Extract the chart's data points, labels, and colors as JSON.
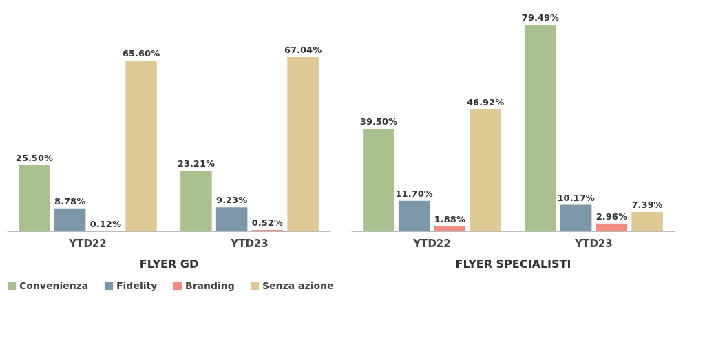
{
  "chart_data": [
    {
      "type": "bar",
      "xlabel": "FLYER GD",
      "categories": [
        "YTD22",
        "YTD23"
      ],
      "legend": "bottom",
      "series": [
        {
          "name": "Convenienza",
          "color": "#a9c08f",
          "values": [
            25.5,
            23.21
          ],
          "value_labels": [
            "25.50%",
            "23.21%"
          ]
        },
        {
          "name": "Fidelity",
          "color": "#7b97a8",
          "values": [
            8.78,
            9.23
          ],
          "value_labels": [
            "8.78%",
            "9.23%"
          ]
        },
        {
          "name": "Branding",
          "color": "#f28b82",
          "values": [
            0.12,
            0.52
          ],
          "value_labels": [
            "0.12%",
            "0.52%"
          ]
        },
        {
          "name": "Senza azione",
          "color": "#dfc995",
          "values": [
            65.6,
            67.04
          ],
          "value_labels": [
            "65.60%",
            "67.04%"
          ]
        }
      ]
    },
    {
      "type": "bar",
      "xlabel": "FLYER SPECIALISTI",
      "categories": [
        "YTD22",
        "YTD23"
      ],
      "legend": "bottom",
      "series": [
        {
          "name": "Convenienza",
          "color": "#a9c08f",
          "values": [
            39.5,
            79.49
          ],
          "value_labels": [
            "39.50%",
            "79.49%"
          ]
        },
        {
          "name": "Fidelity",
          "color": "#7b97a8",
          "values": [
            11.7,
            10.17
          ],
          "value_labels": [
            "11.70%",
            "10.17%"
          ]
        },
        {
          "name": "Branding",
          "color": "#f28b82",
          "values": [
            1.88,
            2.96
          ],
          "value_labels": [
            "1.88%",
            "2.96%"
          ]
        },
        {
          "name": "Senza azione",
          "color": "#dfc995",
          "values": [
            46.92,
            7.39
          ],
          "value_labels": [
            "46.92%",
            "7.39%"
          ]
        }
      ]
    }
  ]
}
